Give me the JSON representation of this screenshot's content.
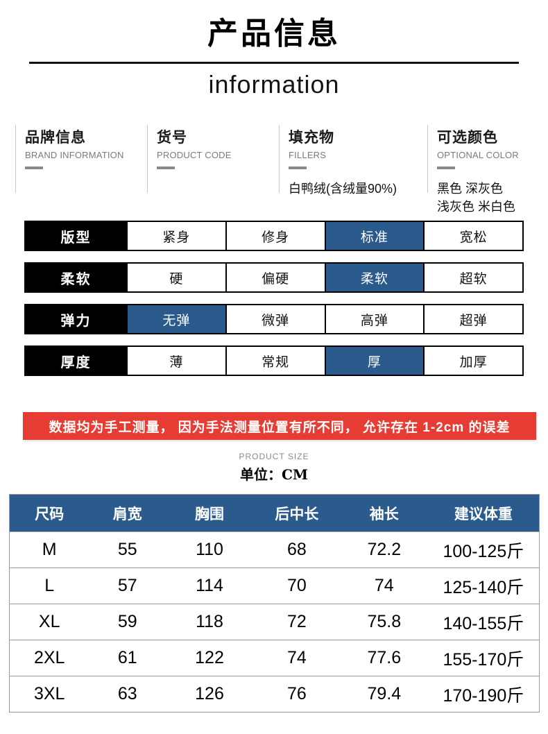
{
  "colors": {
    "accent_blue": "#2A5B8C",
    "notice_red": "#E73C34",
    "label_black": "#000000"
  },
  "header": {
    "title": "产品信息",
    "subtitle": "information"
  },
  "info_columns": [
    {
      "title": "品牌信息",
      "subtitle": "BRAND INFORMATION",
      "value": ""
    },
    {
      "title": "货号",
      "subtitle": "PRODUCT CODE",
      "value": ""
    },
    {
      "title": "填充物",
      "subtitle": "FILLERS",
      "value": "白鸭绒(含绒量90%)"
    },
    {
      "title": "可选颜色",
      "subtitle": "OPTIONAL COLOR",
      "value": "黑色 深灰色\n浅灰色 米白色"
    }
  ],
  "attributes": {
    "rows": [
      {
        "label": "版型",
        "options": [
          {
            "text": "紧身",
            "selected": false
          },
          {
            "text": "修身",
            "selected": false
          },
          {
            "text": "标准",
            "selected": true
          },
          {
            "text": "宽松",
            "selected": false
          }
        ]
      },
      {
        "label": "柔软",
        "options": [
          {
            "text": "硬",
            "selected": false
          },
          {
            "text": "偏硬",
            "selected": false
          },
          {
            "text": "柔软",
            "selected": true
          },
          {
            "text": "超软",
            "selected": false
          }
        ]
      },
      {
        "label": "弹力",
        "options": [
          {
            "text": "无弹",
            "selected": true
          },
          {
            "text": "微弹",
            "selected": false
          },
          {
            "text": "高弹",
            "selected": false
          },
          {
            "text": "超弹",
            "selected": false
          }
        ]
      },
      {
        "label": "厚度",
        "options": [
          {
            "text": "薄",
            "selected": false
          },
          {
            "text": "常规",
            "selected": false
          },
          {
            "text": "厚",
            "selected": true
          },
          {
            "text": "加厚",
            "selected": false
          }
        ]
      }
    ]
  },
  "notice": {
    "text": "数据均为手工测量， 因为手法测量位置有所不同， 允许存在 1-2cm 的误差"
  },
  "size_section": {
    "eyebrow": "PRODUCT SIZE",
    "unit_label": "单位：CM"
  },
  "size_table": {
    "headers": [
      "尺码",
      "肩宽",
      "胸围",
      "后中长",
      "袖长",
      "建议体重"
    ],
    "rows": [
      [
        "M",
        "55",
        "110",
        "68",
        "72.2",
        "100-125斤"
      ],
      [
        "L",
        "57",
        "114",
        "70",
        "74",
        "125-140斤"
      ],
      [
        "XL",
        "59",
        "118",
        "72",
        "75.8",
        "140-155斤"
      ],
      [
        "2XL",
        "61",
        "122",
        "74",
        "77.6",
        "155-170斤"
      ],
      [
        "3XL",
        "63",
        "126",
        "76",
        "79.4",
        "170-190斤"
      ]
    ]
  }
}
